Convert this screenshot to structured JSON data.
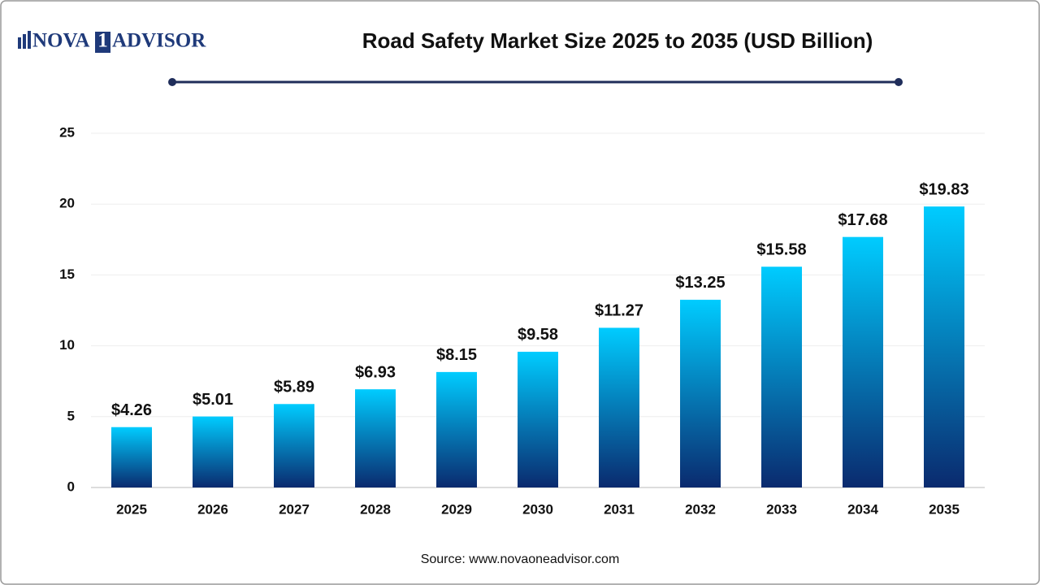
{
  "logo": [
    "NOVA",
    "1",
    "ADVISOR"
  ],
  "chart_data": {
    "type": "bar",
    "title": "Road Safety Market Size 2025 to 2035 (USD Billion)",
    "source": "Source: www.novaoneadvisor.com",
    "categories": [
      "2025",
      "2026",
      "2027",
      "2028",
      "2029",
      "2030",
      "2031",
      "2032",
      "2033",
      "2034",
      "2035"
    ],
    "values": [
      4.26,
      5.01,
      5.89,
      6.93,
      8.15,
      9.58,
      11.27,
      13.25,
      15.58,
      17.68,
      19.83
    ],
    "value_labels": [
      "$4.26",
      "$5.01",
      "$5.89",
      "$6.93",
      "$8.15",
      "$9.58",
      "$11.27",
      "$13.25",
      "$15.58",
      "$17.68",
      "$19.83"
    ],
    "color": [
      "#00ccff",
      "#0a2a6e"
    ],
    "ylim": [
      0,
      25
    ],
    "yticks": [
      0,
      5,
      10,
      15,
      20,
      25
    ],
    "grid": true
  }
}
